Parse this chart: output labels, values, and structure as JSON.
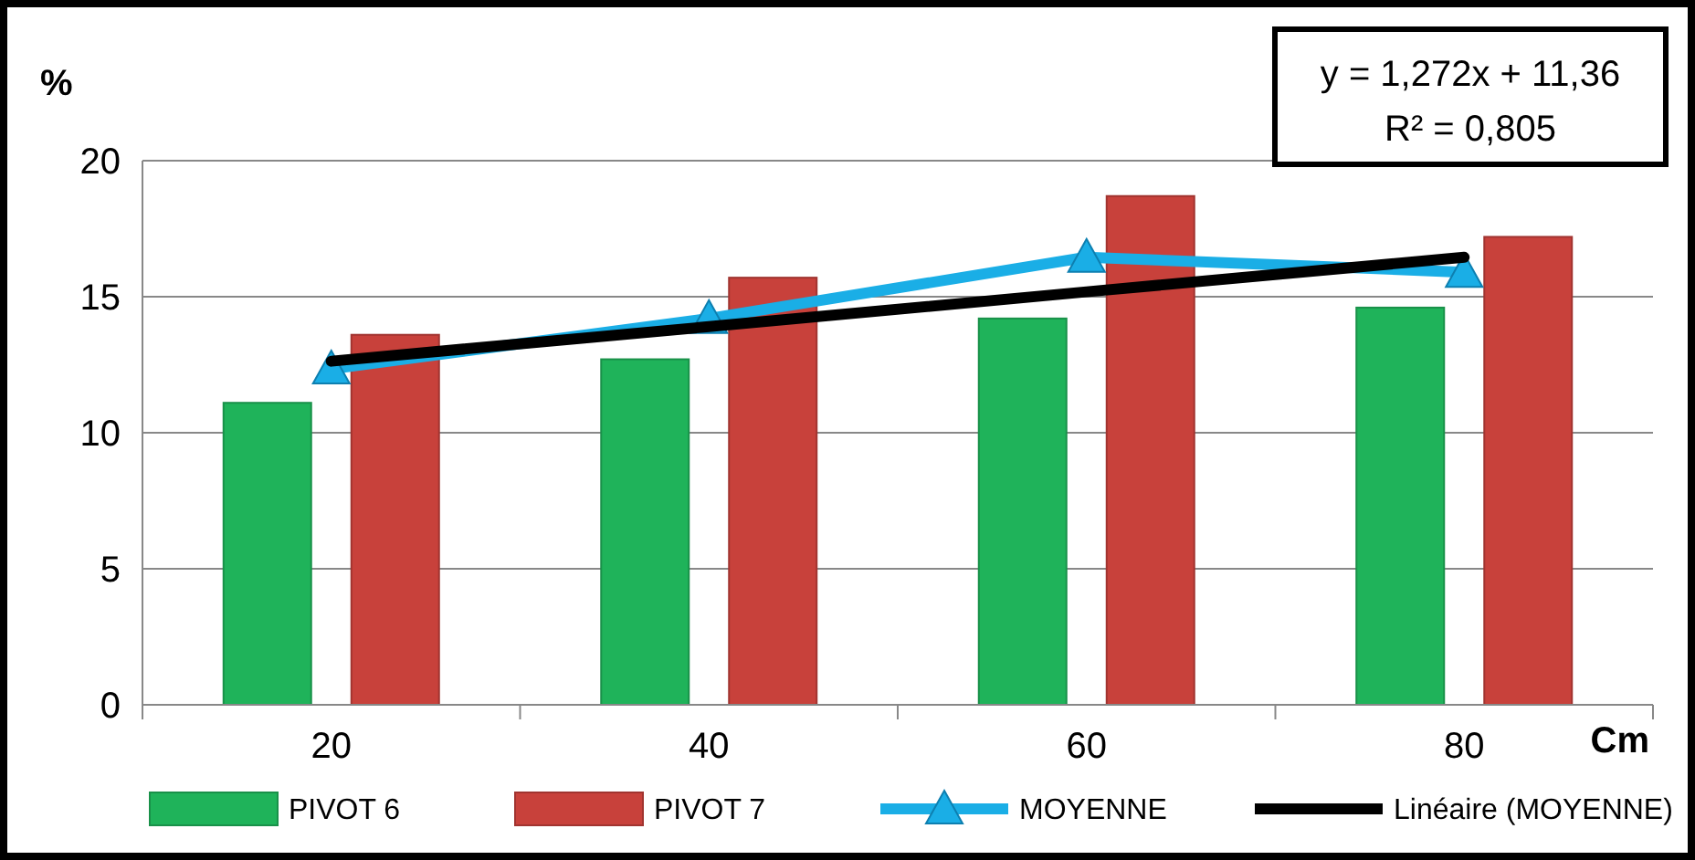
{
  "chart_data": {
    "type": "bar",
    "ylabel": "%",
    "xlabel": "Cm",
    "categories": [
      "20",
      "40",
      "60",
      "80"
    ],
    "series": [
      {
        "name": "PIVOT 6",
        "color": "#1fb35a",
        "values": [
          11.1,
          12.7,
          14.2,
          14.6
        ]
      },
      {
        "name": "PIVOT 7",
        "color": "#c8413b",
        "values": [
          13.6,
          15.7,
          18.7,
          17.2
        ]
      },
      {
        "name": "MOYENNE",
        "type": "line",
        "color": "#1aaee6",
        "marker": "triangle",
        "values": [
          12.35,
          14.2,
          16.45,
          15.9
        ]
      },
      {
        "name": "Linéaire (MOYENNE)",
        "type": "line",
        "color": "#000000",
        "marker": "none",
        "values": [
          12.63,
          13.9,
          15.18,
          16.45
        ]
      }
    ],
    "ylim": [
      0,
      20
    ],
    "yticks": [
      0,
      5,
      10,
      15,
      20
    ],
    "grid": "y",
    "legend": "bottom",
    "annotations": [
      "y = 1,272x + 11,36",
      "R² = 0,805"
    ]
  }
}
